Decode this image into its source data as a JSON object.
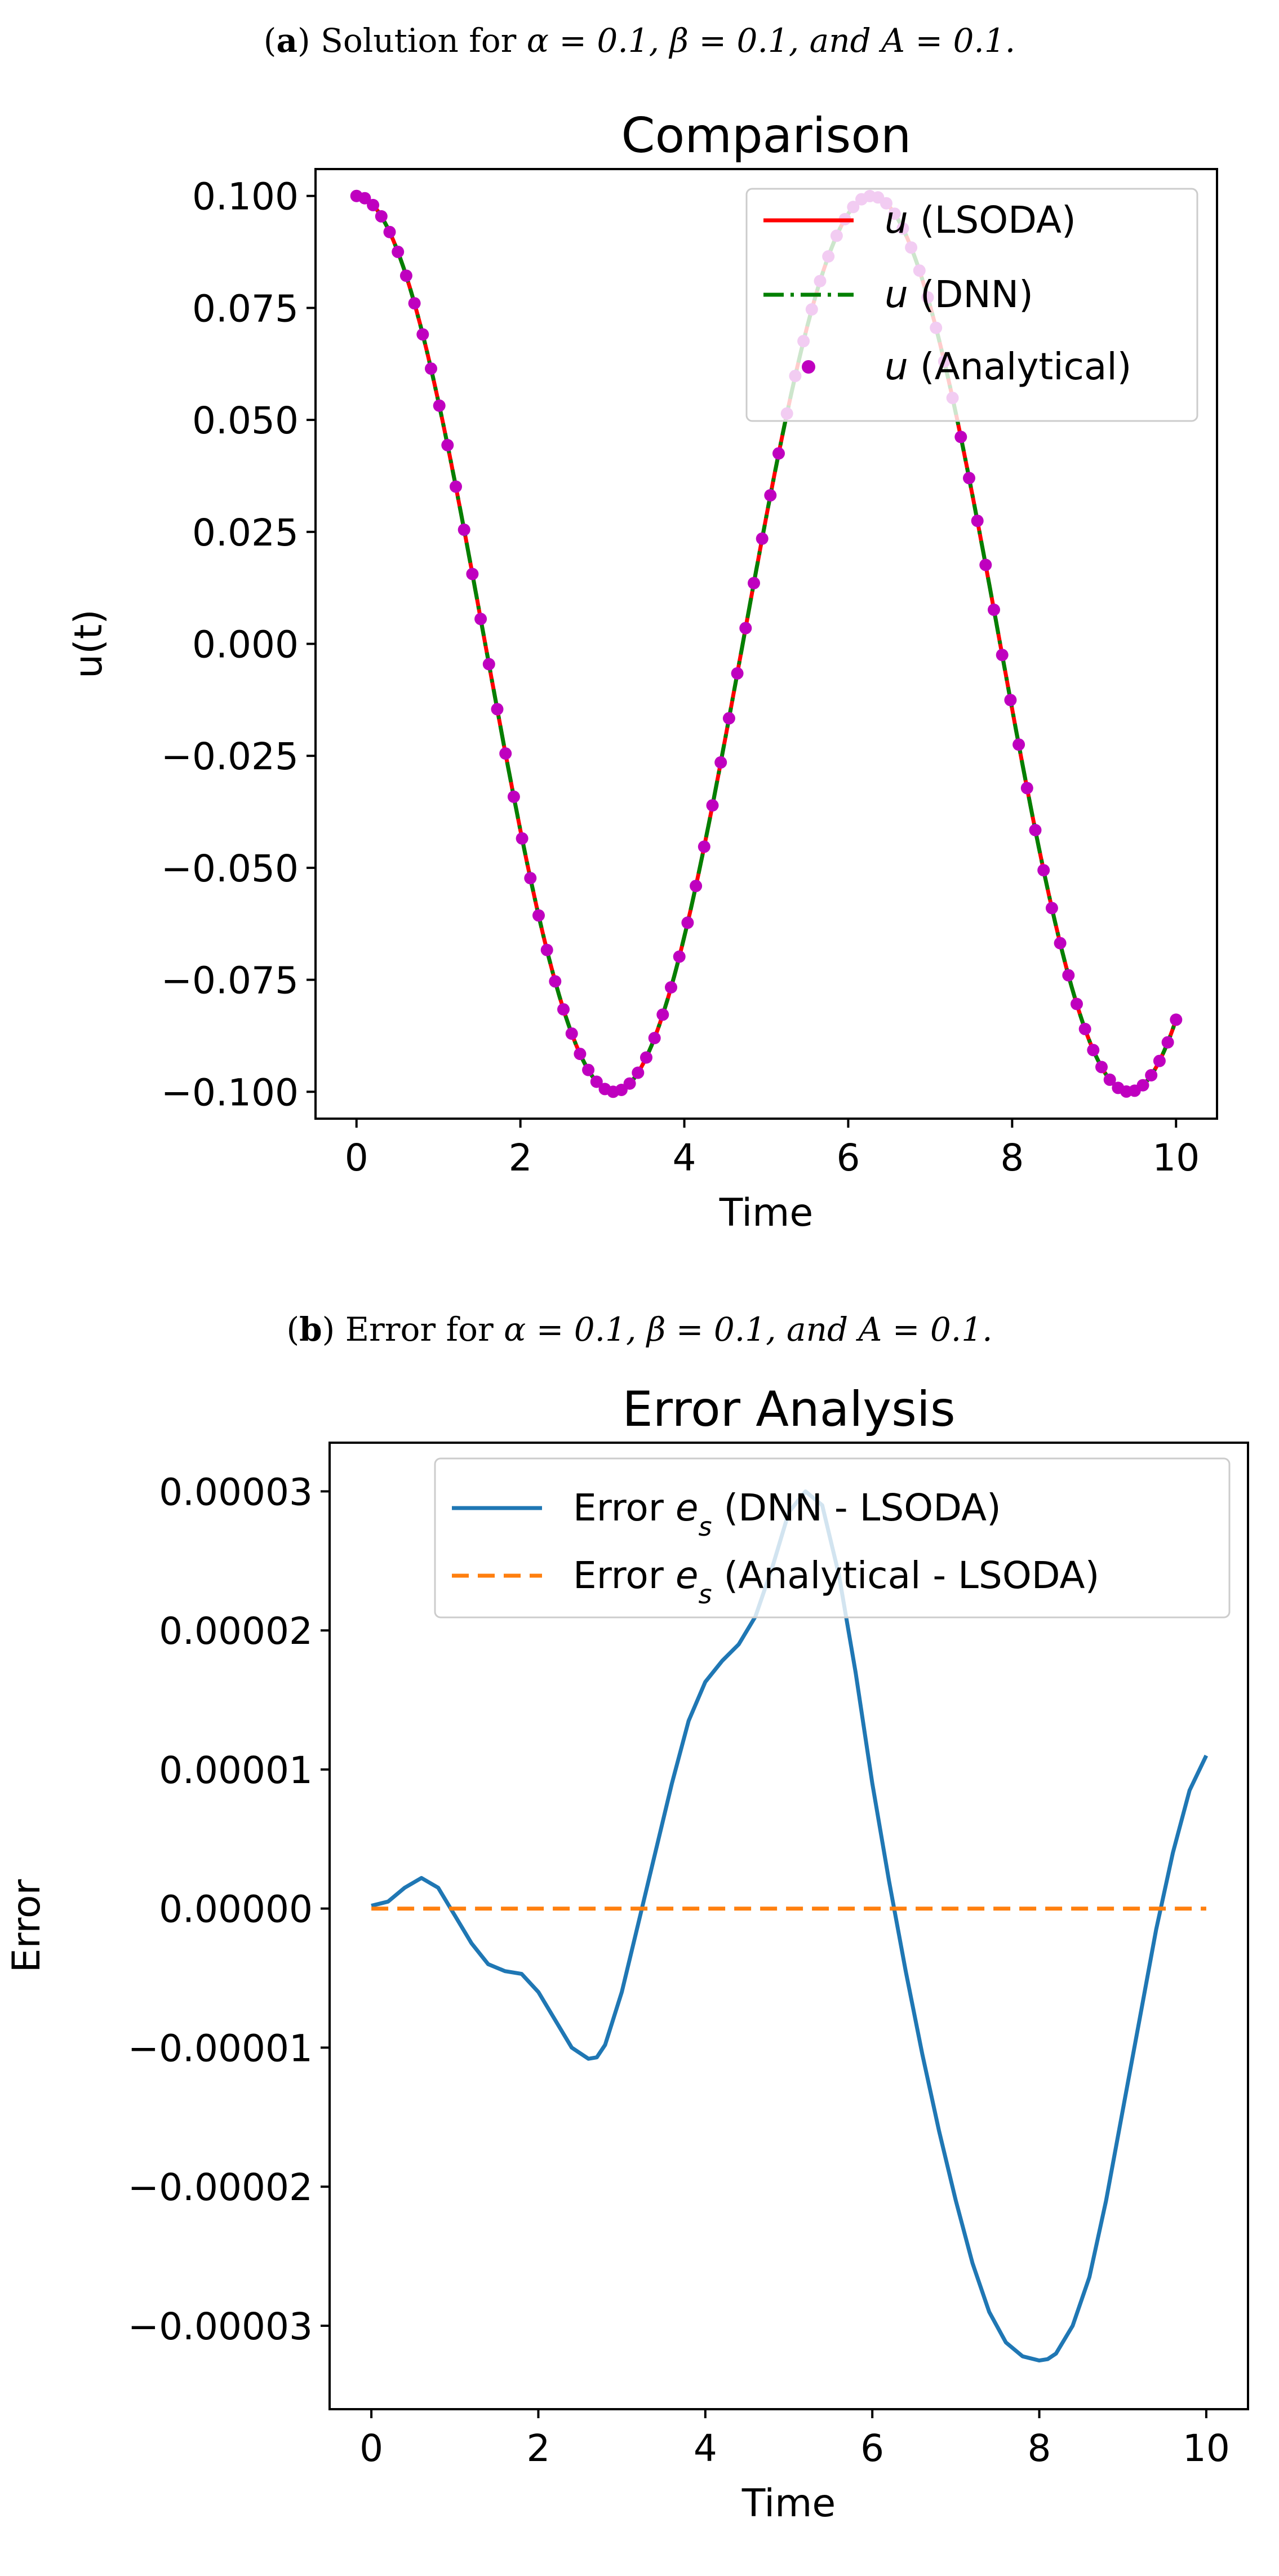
{
  "figure": {
    "caption_a": {
      "letter": "a",
      "text": "Solution for",
      "math_alpha": "α = 0.1, β = 0.1, and A = 0.1."
    },
    "caption_b": {
      "letter": "b",
      "text": "Error for",
      "math_alpha": "α = 0.1, β = 0.1, and A = 0.1."
    }
  },
  "colors": {
    "lsoda": "#ff0000",
    "dnn": "#008000",
    "analytical_marker": "#bf00bf",
    "error_dnn": "#1f77b4",
    "error_analytical": "#ff7f0e"
  },
  "chart_data": [
    {
      "type": "line",
      "title": "Comparison",
      "xlabel": "Time",
      "ylabel": "u(t)",
      "xlim": [
        -0.5,
        10.5
      ],
      "ylim": [
        -0.106,
        0.106
      ],
      "xticks": [
        0,
        2,
        4,
        6,
        8,
        10
      ],
      "xtick_labels": [
        "0",
        "2",
        "4",
        "6",
        "8",
        "10"
      ],
      "yticks": [
        0.1,
        0.075,
        0.05,
        0.025,
        0.0,
        -0.025,
        -0.05,
        -0.075,
        -0.1
      ],
      "ytick_labels": [
        "0.100",
        "0.075",
        "0.050",
        "0.025",
        "0.000",
        "−0.025",
        "−0.050",
        "−0.075",
        "−0.100"
      ],
      "legend_position": "top-right",
      "function": "u(t) = 0.1·cos(t), t in [0, 10]",
      "series": [
        {
          "name": "u (LSODA)",
          "symbol": "u",
          "label_rest": " (LSODA)",
          "style": "solid line"
        },
        {
          "name": "u (DNN)",
          "symbol": "u",
          "label_rest": " (DNN)",
          "style": "dash-dot line"
        },
        {
          "name": "u (Analytical)",
          "symbol": "u",
          "label_rest": " (Analytical)",
          "style": "circle markers",
          "marker_count": 100
        }
      ]
    },
    {
      "type": "line",
      "title": "Error Analysis",
      "xlabel": "Time",
      "ylabel": "Error",
      "xlim": [
        -0.5,
        10.5
      ],
      "ylim": [
        -3.6e-05,
        3.35e-05
      ],
      "xticks": [
        0,
        2,
        4,
        6,
        8,
        10
      ],
      "xtick_labels": [
        "0",
        "2",
        "4",
        "6",
        "8",
        "10"
      ],
      "yticks": [
        3e-05,
        2e-05,
        1e-05,
        0.0,
        -1e-05,
        -2e-05,
        -3e-05
      ],
      "ytick_labels": [
        "0.00003",
        "0.00002",
        "0.00001",
        "0.00000",
        "−0.00001",
        "−0.00002",
        "−0.00003"
      ],
      "legend_position": "top-right",
      "series": [
        {
          "name": "Error e_s (DNN - LSODA)",
          "label_pre": "Error ",
          "symbol": "e",
          "sub": "s",
          "label_rest": " (DNN - LSODA)",
          "style": "solid line",
          "x": [
            0,
            0.2,
            0.4,
            0.6,
            0.8,
            1.0,
            1.2,
            1.4,
            1.6,
            1.8,
            2.0,
            2.2,
            2.4,
            2.6,
            2.7,
            2.8,
            3.0,
            3.2,
            3.4,
            3.6,
            3.8,
            4.0,
            4.2,
            4.4,
            4.6,
            4.8,
            5.0,
            5.2,
            5.4,
            5.6,
            5.8,
            6.0,
            6.2,
            6.4,
            6.6,
            6.8,
            7.0,
            7.2,
            7.4,
            7.6,
            7.8,
            8.0,
            8.1,
            8.2,
            8.4,
            8.6,
            8.8,
            9.0,
            9.2,
            9.4,
            9.6,
            9.8,
            10.0
          ],
          "y": [
            2e-07,
            5e-07,
            1.5e-06,
            2.2e-06,
            1.5e-06,
            -5e-07,
            -2.5e-06,
            -4e-06,
            -4.5e-06,
            -4.7e-06,
            -6e-06,
            -8e-06,
            -1e-05,
            -1.08e-05,
            -1.07e-05,
            -9.8e-06,
            -6e-06,
            -1e-06,
            4e-06,
            9e-06,
            1.35e-05,
            1.63e-05,
            1.78e-05,
            1.9e-05,
            2.1e-05,
            2.45e-05,
            2.85e-05,
            3e-05,
            2.9e-05,
            2.4e-05,
            1.7e-05,
            9e-06,
            2e-06,
            -4.5e-06,
            -1.05e-05,
            -1.6e-05,
            -2.1e-05,
            -2.55e-05,
            -2.9e-05,
            -3.12e-05,
            -3.22e-05,
            -3.25e-05,
            -3.24e-05,
            -3.2e-05,
            -3e-05,
            -2.65e-05,
            -2.1e-05,
            -1.45e-05,
            -8e-06,
            -1.5e-06,
            4e-06,
            8.5e-06,
            1.1e-05
          ]
        },
        {
          "name": "Error e_s (Analytical - LSODA)",
          "label_pre": "Error ",
          "symbol": "e",
          "sub": "s",
          "label_rest": " (Analytical - LSODA)",
          "style": "dashed line",
          "x": [
            0,
            10
          ],
          "y": [
            0.0,
            0.0
          ]
        }
      ]
    }
  ]
}
